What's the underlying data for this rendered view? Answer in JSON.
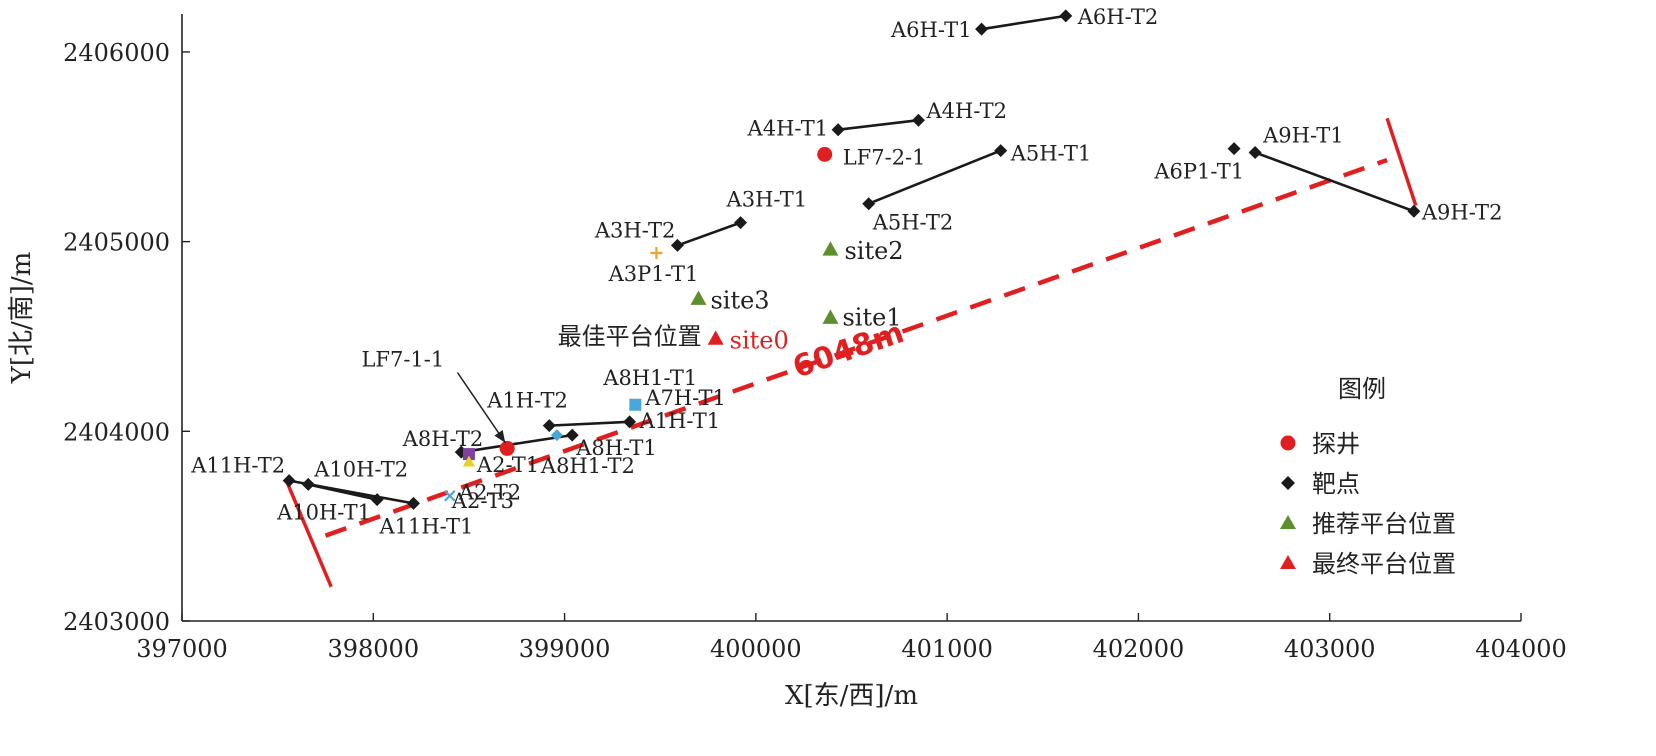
{
  "chart_data": {
    "type": "scatter",
    "xlabel": "X[东/西]/m",
    "ylabel": "Y[北/南]/m",
    "xlim": [
      397000,
      404000
    ],
    "ylim": [
      2403000,
      2406200
    ],
    "xticks": [
      397000,
      398000,
      399000,
      400000,
      401000,
      402000,
      403000,
      404000
    ],
    "yticks": [
      2403000,
      2404000,
      2405000,
      2406000
    ],
    "legend": {
      "title": "图例",
      "position": "right",
      "items": [
        {
          "label": "探井",
          "marker": "circle",
          "color": "#e02020"
        },
        {
          "label": "靶点",
          "marker": "diamond",
          "color": "#1a1a1a"
        },
        {
          "label": "推荐平台位置",
          "marker": "triangle",
          "color": "#5e8f2e"
        },
        {
          "label": "最终平台位置",
          "marker": "triangle",
          "color": "#e02020"
        }
      ]
    },
    "wells": [
      {
        "label": "LF7-2-1",
        "x": 400360,
        "y": 2405460
      },
      {
        "label": "LF7-1-1",
        "x": 398700,
        "y": 2403910
      }
    ],
    "targets": [
      {
        "label": "A6H-T1",
        "x": 401180,
        "y": 2406120
      },
      {
        "label": "A6H-T2",
        "x": 401620,
        "y": 2406190
      },
      {
        "label": "A4H-T1",
        "x": 400430,
        "y": 2405590
      },
      {
        "label": "A4H-T2",
        "x": 400850,
        "y": 2405640
      },
      {
        "label": "A5H-T1",
        "x": 401280,
        "y": 2405480
      },
      {
        "label": "A5H-T2",
        "x": 400590,
        "y": 2405200
      },
      {
        "label": "A3H-T1",
        "x": 399920,
        "y": 2405100
      },
      {
        "label": "A3H-T2",
        "x": 399590,
        "y": 2404980
      },
      {
        "label": "A9H-T1",
        "x": 402610,
        "y": 2405470
      },
      {
        "label": "A6P1-T1",
        "x": 402500,
        "y": 2405490
      },
      {
        "label": "A9H-T2",
        "x": 403440,
        "y": 2405160
      },
      {
        "label": "A1H-T2",
        "x": 398920,
        "y": 2404030
      },
      {
        "label": "A1H-T1",
        "x": 399340,
        "y": 2404050
      },
      {
        "label": "A8H-T2",
        "x": 398460,
        "y": 2403890
      },
      {
        "label": "A8H-T1",
        "x": 399040,
        "y": 2403980
      },
      {
        "label": "A11H-T2",
        "x": 397560,
        "y": 2403740
      },
      {
        "label": "A11H-T1",
        "x": 398210,
        "y": 2403620
      },
      {
        "label": "A10H-T2",
        "x": 397660,
        "y": 2403720
      },
      {
        "label": "A10H-T1",
        "x": 398020,
        "y": 2403640
      }
    ],
    "trajectories": [
      [
        "A6H-T1",
        "A6H-T2"
      ],
      [
        "A4H-T1",
        "A4H-T2"
      ],
      [
        "A5H-T2",
        "A5H-T1"
      ],
      [
        "A3H-T2",
        "A3H-T1"
      ],
      [
        "A9H-T1",
        "A9H-T2"
      ],
      [
        "A1H-T2",
        "A1H-T1"
      ],
      [
        "A8H-T2",
        "A8H-T1"
      ],
      [
        "A11H-T2",
        "A11H-T1"
      ],
      [
        "A10H-T2",
        "A10H-T1"
      ]
    ],
    "other_points": [
      {
        "label": "A3P1-T1",
        "x": 399480,
        "y": 2404940,
        "marker": "plus",
        "color": "#f0a030"
      },
      {
        "label": "A8H1-T1",
        "x": 399370,
        "y": 2404140,
        "marker": "square",
        "color": "#4aa8d8"
      },
      {
        "label": "A7H-T1",
        "x": 399370,
        "y": 2404140,
        "marker": "none",
        "color": "#222222"
      },
      {
        "label": "A8H1-T2",
        "x": 398960,
        "y": 2403980,
        "marker": "diamond",
        "color": "#4aa8d8"
      },
      {
        "label": "A2-T1",
        "x": 398500,
        "y": 2403880,
        "marker": "square",
        "color": "#8040a0"
      },
      {
        "label": "A2-T2",
        "x": 398500,
        "y": 2403840,
        "marker": "triangle",
        "color": "#e8d020"
      },
      {
        "label": "A2-T3",
        "x": 398400,
        "y": 2403660,
        "marker": "x",
        "color": "#4aa8d8"
      }
    ],
    "recommended_sites": [
      {
        "label": "site2",
        "x": 400390,
        "y": 2404960
      },
      {
        "label": "site3",
        "x": 399700,
        "y": 2404700
      },
      {
        "label": "site1",
        "x": 400390,
        "y": 2404600
      }
    ],
    "final_site": {
      "label": "site0",
      "x": 399790,
      "y": 2404490,
      "annotation": "最佳平台位置"
    },
    "distance_line": {
      "label": "6048m",
      "from": {
        "x": 397750,
        "y": 2403450
      },
      "to": {
        "x": 403300,
        "y": 2405430
      },
      "end_ticks": [
        {
          "from": {
            "x": 397550,
            "y": 2403730
          },
          "to": {
            "x": 397780,
            "y": 2403180
          }
        },
        {
          "from": {
            "x": 403300,
            "y": 2405650
          },
          "to": {
            "x": 403450,
            "y": 2405190
          }
        }
      ]
    },
    "annotation_arrow": {
      "label": "LF7-1-1",
      "from": {
        "x": 398440,
        "y": 2404310
      },
      "to": {
        "x": 398690,
        "y": 2403940
      }
    }
  },
  "colors": {
    "well": "#e02020",
    "target": "#1a1a1a",
    "recommended": "#5e8f2e",
    "final": "#e02020",
    "distance": "#e02020",
    "axis": "#222222"
  }
}
